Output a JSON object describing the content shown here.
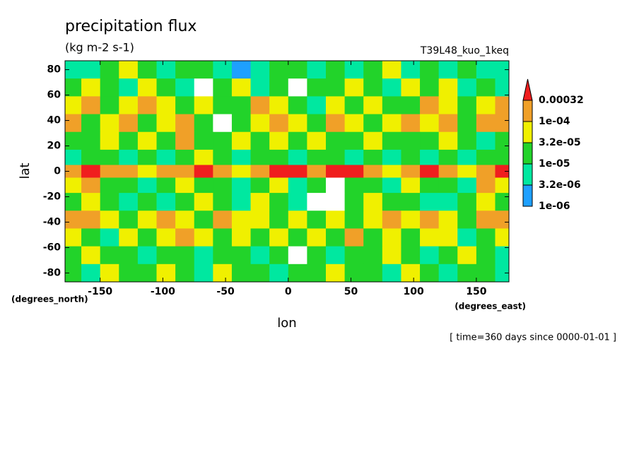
{
  "chart_data": {
    "type": "contour",
    "title": "precipitation flux",
    "subtitle": "(kg m-2 s-1)",
    "annotation": "T39L48_kuo_1keq",
    "xlabel": "lon",
    "ylabel": "lat",
    "xunits": "(degrees_east)",
    "yunits": "(degrees_north)",
    "footer": "[ time=360 days since 0000-01-01 ]",
    "xlim": [
      -178,
      176
    ],
    "ylim": [
      -87,
      87
    ],
    "xticks": [
      -150,
      -100,
      -50,
      0,
      50,
      100,
      150
    ],
    "yticks": [
      -80,
      -60,
      -40,
      -20,
      0,
      20,
      40,
      60,
      80
    ],
    "levels": [
      {
        "value": 1e-06,
        "label": "1e-06"
      },
      {
        "value": 3.2e-06,
        "label": "3.2e-06"
      },
      {
        "value": 1e-05,
        "label": "1e-05"
      },
      {
        "value": 3.2e-05,
        "label": "3.2e-05"
      },
      {
        "value": 0.0001,
        "label": "1e-04"
      },
      0.00032
    ],
    "colors": [
      "#ffffff",
      "#1ea0ff",
      "#00e8a0",
      "#22d32a",
      "#f0f000",
      "#f0a028",
      "#f01e1e"
    ],
    "lon": [
      -172.5,
      -157.5,
      -142.5,
      -127.5,
      -112.5,
      -97.5,
      -82.5,
      -67.5,
      -52.5,
      -37.5,
      -22.5,
      -7.5,
      7.5,
      22.5,
      37.5,
      52.5,
      67.5,
      82.5,
      97.5,
      112.5,
      127.5,
      142.5,
      157.5,
      172.5
    ],
    "lat": [
      80,
      66,
      52,
      38,
      24,
      10,
      0,
      -10,
      -24,
      -38,
      -52,
      -66,
      -80
    ],
    "z": [
      [
        5e-06,
        5e-06,
        2e-05,
        5e-05,
        2e-05,
        5e-06,
        2e-05,
        2e-05,
        5e-06,
        2e-06,
        5e-06,
        2e-05,
        2e-05,
        5e-06,
        2e-05,
        5e-06,
        2e-05,
        5e-05,
        5e-06,
        2e-05,
        5e-06,
        2e-05,
        5e-06,
        5e-06
      ],
      [
        2e-05,
        5e-05,
        2e-05,
        5e-06,
        5e-05,
        2e-05,
        5e-06,
        5e-07,
        2e-05,
        5e-05,
        5e-06,
        2e-05,
        5e-07,
        2e-05,
        2e-05,
        5e-05,
        2e-05,
        5e-06,
        5e-05,
        2e-05,
        5e-05,
        5e-06,
        2e-05,
        5e-06
      ],
      [
        5e-05,
        0.00015,
        2e-05,
        5e-05,
        0.00015,
        5e-05,
        2e-05,
        5e-05,
        2e-05,
        2e-05,
        0.00015,
        5e-05,
        2e-05,
        5e-06,
        5e-05,
        2e-05,
        5e-05,
        2e-05,
        2e-05,
        0.00015,
        5e-05,
        2e-05,
        5e-05,
        0.00015
      ],
      [
        0.00015,
        2e-05,
        5e-05,
        0.00015,
        2e-05,
        5e-05,
        0.00015,
        2e-05,
        5e-07,
        2e-05,
        5e-05,
        0.00015,
        5e-05,
        2e-05,
        0.00015,
        5e-05,
        2e-05,
        5e-05,
        0.00015,
        5e-05,
        0.00015,
        2e-05,
        0.00015,
        0.00015
      ],
      [
        2e-05,
        2e-05,
        5e-05,
        2e-05,
        5e-05,
        2e-05,
        0.00015,
        2e-05,
        2e-05,
        5e-05,
        2e-05,
        5e-05,
        2e-05,
        5e-05,
        2e-05,
        2e-05,
        5e-05,
        2e-05,
        2e-05,
        2e-05,
        5e-05,
        2e-05,
        5e-06,
        2e-05
      ],
      [
        5e-06,
        2e-05,
        2e-05,
        5e-06,
        2e-05,
        5e-06,
        2e-05,
        5e-05,
        2e-05,
        5e-06,
        2e-05,
        2e-05,
        5e-06,
        2e-05,
        2e-05,
        5e-06,
        2e-05,
        5e-06,
        2e-05,
        5e-06,
        2e-05,
        5e-06,
        2e-05,
        2e-05
      ],
      [
        0.00015,
        0.0005,
        0.00015,
        0.00015,
        5e-05,
        0.00015,
        0.00015,
        0.0005,
        0.00015,
        5e-05,
        0.00015,
        0.0005,
        0.0005,
        0.00015,
        0.0005,
        0.0005,
        0.00015,
        5e-05,
        0.00015,
        0.0005,
        0.00015,
        5e-05,
        0.00015,
        0.0005
      ],
      [
        5e-05,
        0.00015,
        2e-05,
        2e-05,
        5e-06,
        2e-05,
        5e-05,
        2e-05,
        2e-05,
        5e-06,
        2e-05,
        5e-05,
        5e-06,
        2e-05,
        5e-07,
        2e-05,
        2e-05,
        5e-06,
        5e-05,
        2e-05,
        2e-05,
        5e-06,
        0.00015,
        5e-05
      ],
      [
        2e-05,
        5e-05,
        2e-05,
        5e-06,
        2e-05,
        5e-06,
        2e-05,
        5e-05,
        2e-05,
        5e-06,
        5e-05,
        2e-05,
        5e-06,
        5e-07,
        5e-07,
        2e-05,
        5e-05,
        2e-05,
        2e-05,
        5e-06,
        5e-06,
        2e-05,
        5e-05,
        2e-05
      ],
      [
        0.00015,
        0.00015,
        5e-05,
        2e-05,
        5e-05,
        0.00015,
        5e-05,
        2e-05,
        0.00015,
        5e-05,
        5e-05,
        2e-05,
        5e-05,
        2e-05,
        5e-05,
        2e-05,
        5e-05,
        0.00015,
        5e-05,
        0.00015,
        5e-05,
        2e-05,
        0.00015,
        0.00015
      ],
      [
        5e-05,
        2e-05,
        5e-06,
        5e-05,
        2e-05,
        5e-05,
        0.00015,
        5e-05,
        2e-05,
        5e-05,
        2e-05,
        5e-05,
        2e-05,
        5e-05,
        2e-05,
        0.00015,
        2e-05,
        5e-05,
        2e-05,
        5e-05,
        5e-05,
        5e-06,
        2e-05,
        5e-05
      ],
      [
        2e-05,
        5e-05,
        2e-05,
        2e-05,
        5e-06,
        2e-05,
        2e-05,
        5e-06,
        2e-05,
        2e-05,
        5e-06,
        2e-05,
        5e-07,
        2e-05,
        5e-06,
        2e-05,
        2e-05,
        5e-05,
        2e-05,
        5e-06,
        2e-05,
        5e-05,
        2e-05,
        5e-06
      ],
      [
        2e-05,
        5e-06,
        5e-05,
        2e-05,
        2e-05,
        5e-05,
        2e-05,
        5e-06,
        5e-05,
        2e-05,
        2e-05,
        5e-06,
        2e-05,
        2e-05,
        5e-05,
        2e-05,
        2e-05,
        5e-06,
        5e-05,
        2e-05,
        5e-06,
        2e-05,
        2e-05,
        5e-06
      ]
    ]
  }
}
